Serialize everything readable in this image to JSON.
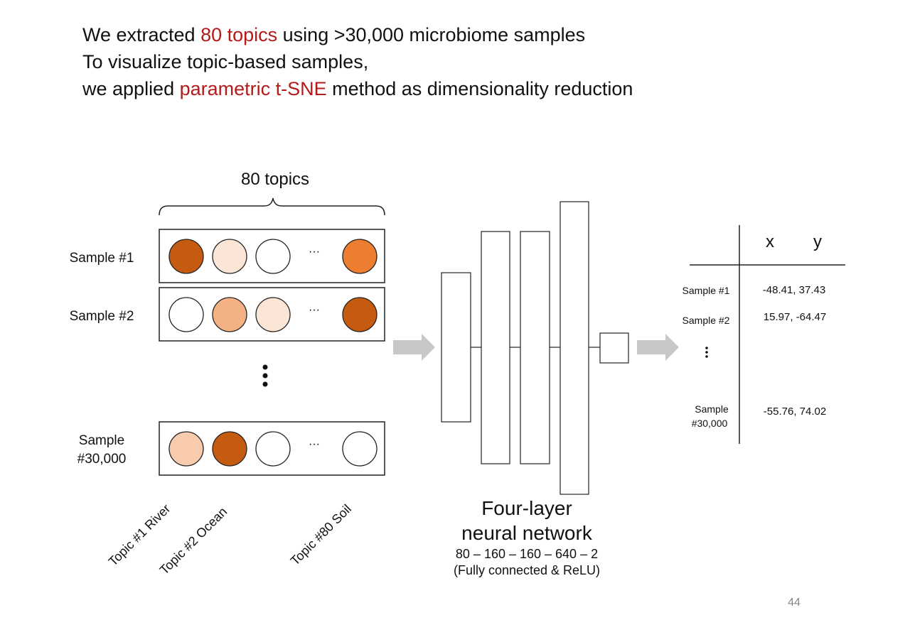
{
  "headline": {
    "line1_a": "We extracted ",
    "line1_b": "80 topics",
    "line1_c": " using >30,000 microbiome samples",
    "line2": "To visualize topic-based samples,",
    "line3_a": "we applied ",
    "line3_b": "parametric t-SNE",
    "line3_c": " method as dimensionality reduction",
    "highlight_color": "#b31b1b"
  },
  "input": {
    "topics_label": "80 topics",
    "ellipsis": "···",
    "rows": [
      {
        "label_lines": [
          "Sample #1"
        ],
        "colors": [
          "#c55a11",
          "#fbe5d6",
          "#ffffff",
          "#ed7d31"
        ]
      },
      {
        "label_lines": [
          "Sample #2"
        ],
        "colors": [
          "#ffffff",
          "#f4b183",
          "#fbe5d6",
          "#c55a11"
        ]
      },
      {
        "label_lines": [
          "Sample",
          "#30,000"
        ],
        "colors": [
          "#f8cbad",
          "#c55a11",
          "#ffffff",
          "#ffffff"
        ]
      }
    ],
    "topic_labels": [
      "Topic #1 River",
      "Topic #2 Ocean",
      "Topic #80 Soil"
    ]
  },
  "network": {
    "title_line1": "Four-layer",
    "title_line2": "neural network",
    "layers_text": "80 – 160 – 160 – 640 – 2",
    "note": "(Fully connected & ReLU)"
  },
  "output_table": {
    "headers": [
      "x",
      "y"
    ],
    "rows": [
      {
        "label_lines": [
          "Sample #1"
        ],
        "value": "-48.41,  37.43"
      },
      {
        "label_lines": [
          "Sample #2"
        ],
        "value": "15.97,  -64.47"
      },
      {
        "label_lines": [
          "Sample",
          "#30,000"
        ],
        "value": "-55.76,  74.02"
      }
    ]
  },
  "page_number": "44",
  "colors": {
    "arrow": "#c8c8c8",
    "dark_orange": "#c55a11",
    "orange": "#ed7d31"
  }
}
